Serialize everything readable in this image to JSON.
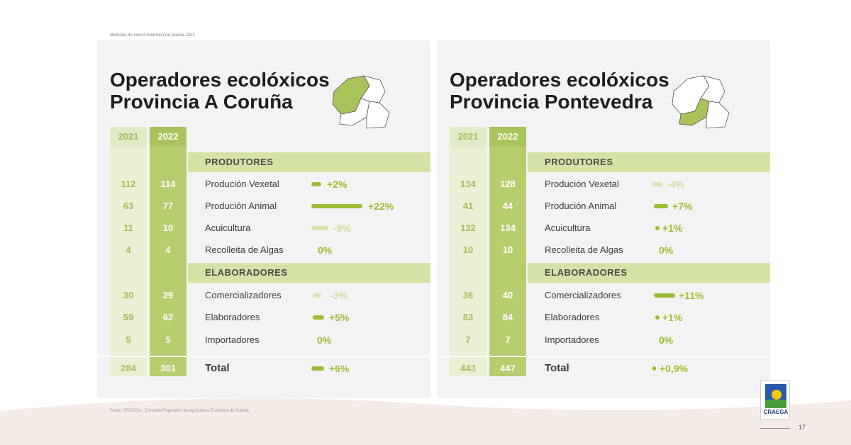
{
  "header_note": "Memoria do sector ecolóxico de Galicia 2022",
  "footer_note": "Fonte: CRAEGA - Consello Regulador da Agricultura Ecolóxica de Galicia",
  "page_number": "17",
  "logo_text": "CRAEGA",
  "colors": {
    "accent": "#9bbd34",
    "accent_light": "#d5e2a6",
    "panel": "#f3f3f3"
  },
  "left": {
    "title_line1": "Operadores ecolóxicos",
    "title_line2": "Provincia A Coruña",
    "year1": "2021",
    "year2": "2022",
    "section1": "PRODUTORES",
    "section2": "ELABORADORES",
    "rows": [
      {
        "label": "Produción Vexetal",
        "v2021": "112",
        "v2022": "114",
        "pct": "+2%",
        "change": 2
      },
      {
        "label": "Produción Animal",
        "v2021": "63",
        "v2022": "77",
        "pct": "+22%",
        "change": 22
      },
      {
        "label": "Acuicultura",
        "v2021": "11",
        "v2022": "10",
        "pct": "-9%",
        "change": -9
      },
      {
        "label": "Recolleita de Algas",
        "v2021": "4",
        "v2022": "4",
        "pct": "0%",
        "change": 0
      },
      {
        "label": "Comercializadores",
        "v2021": "30",
        "v2022": "29",
        "pct": "-3%",
        "change": -3
      },
      {
        "label": "Elaboradores",
        "v2021": "59",
        "v2022": "62",
        "pct": "+5%",
        "change": 5
      },
      {
        "label": "Importadores",
        "v2021": "5",
        "v2022": "5",
        "pct": "0%",
        "change": 0
      }
    ],
    "total": {
      "label": "Total",
      "v2021": "284",
      "v2022": "301",
      "pct": "+6%",
      "change": 6
    }
  },
  "right": {
    "title_line1": "Operadores ecolóxicos",
    "title_line2": "Provincia Pontevedra",
    "year1": "2021",
    "year2": "2022",
    "section1": "PRODUTORES",
    "section2": "ELABORADORES",
    "rows": [
      {
        "label": "Produción Vexetal",
        "v2021": "134",
        "v2022": "128",
        "pct": "-4%",
        "change": -4
      },
      {
        "label": "Produción Animal",
        "v2021": "41",
        "v2022": "44",
        "pct": "+7%",
        "change": 7
      },
      {
        "label": "Acuicultura",
        "v2021": "132",
        "v2022": "134",
        "pct": "+1%",
        "change": 1
      },
      {
        "label": "Recolleita de Algas",
        "v2021": "10",
        "v2022": "10",
        "pct": "0%",
        "change": 0
      },
      {
        "label": "Comercializadores",
        "v2021": "36",
        "v2022": "40",
        "pct": "+11%",
        "change": 11
      },
      {
        "label": "Elaboradores",
        "v2021": "83",
        "v2022": "84",
        "pct": "+1%",
        "change": 1
      },
      {
        "label": "Importadores",
        "v2021": "7",
        "v2022": "7",
        "pct": "0%",
        "change": 0
      }
    ],
    "total": {
      "label": "Total",
      "v2021": "443",
      "v2022": "447",
      "pct": "+0,9%",
      "change": 0.9
    }
  }
}
